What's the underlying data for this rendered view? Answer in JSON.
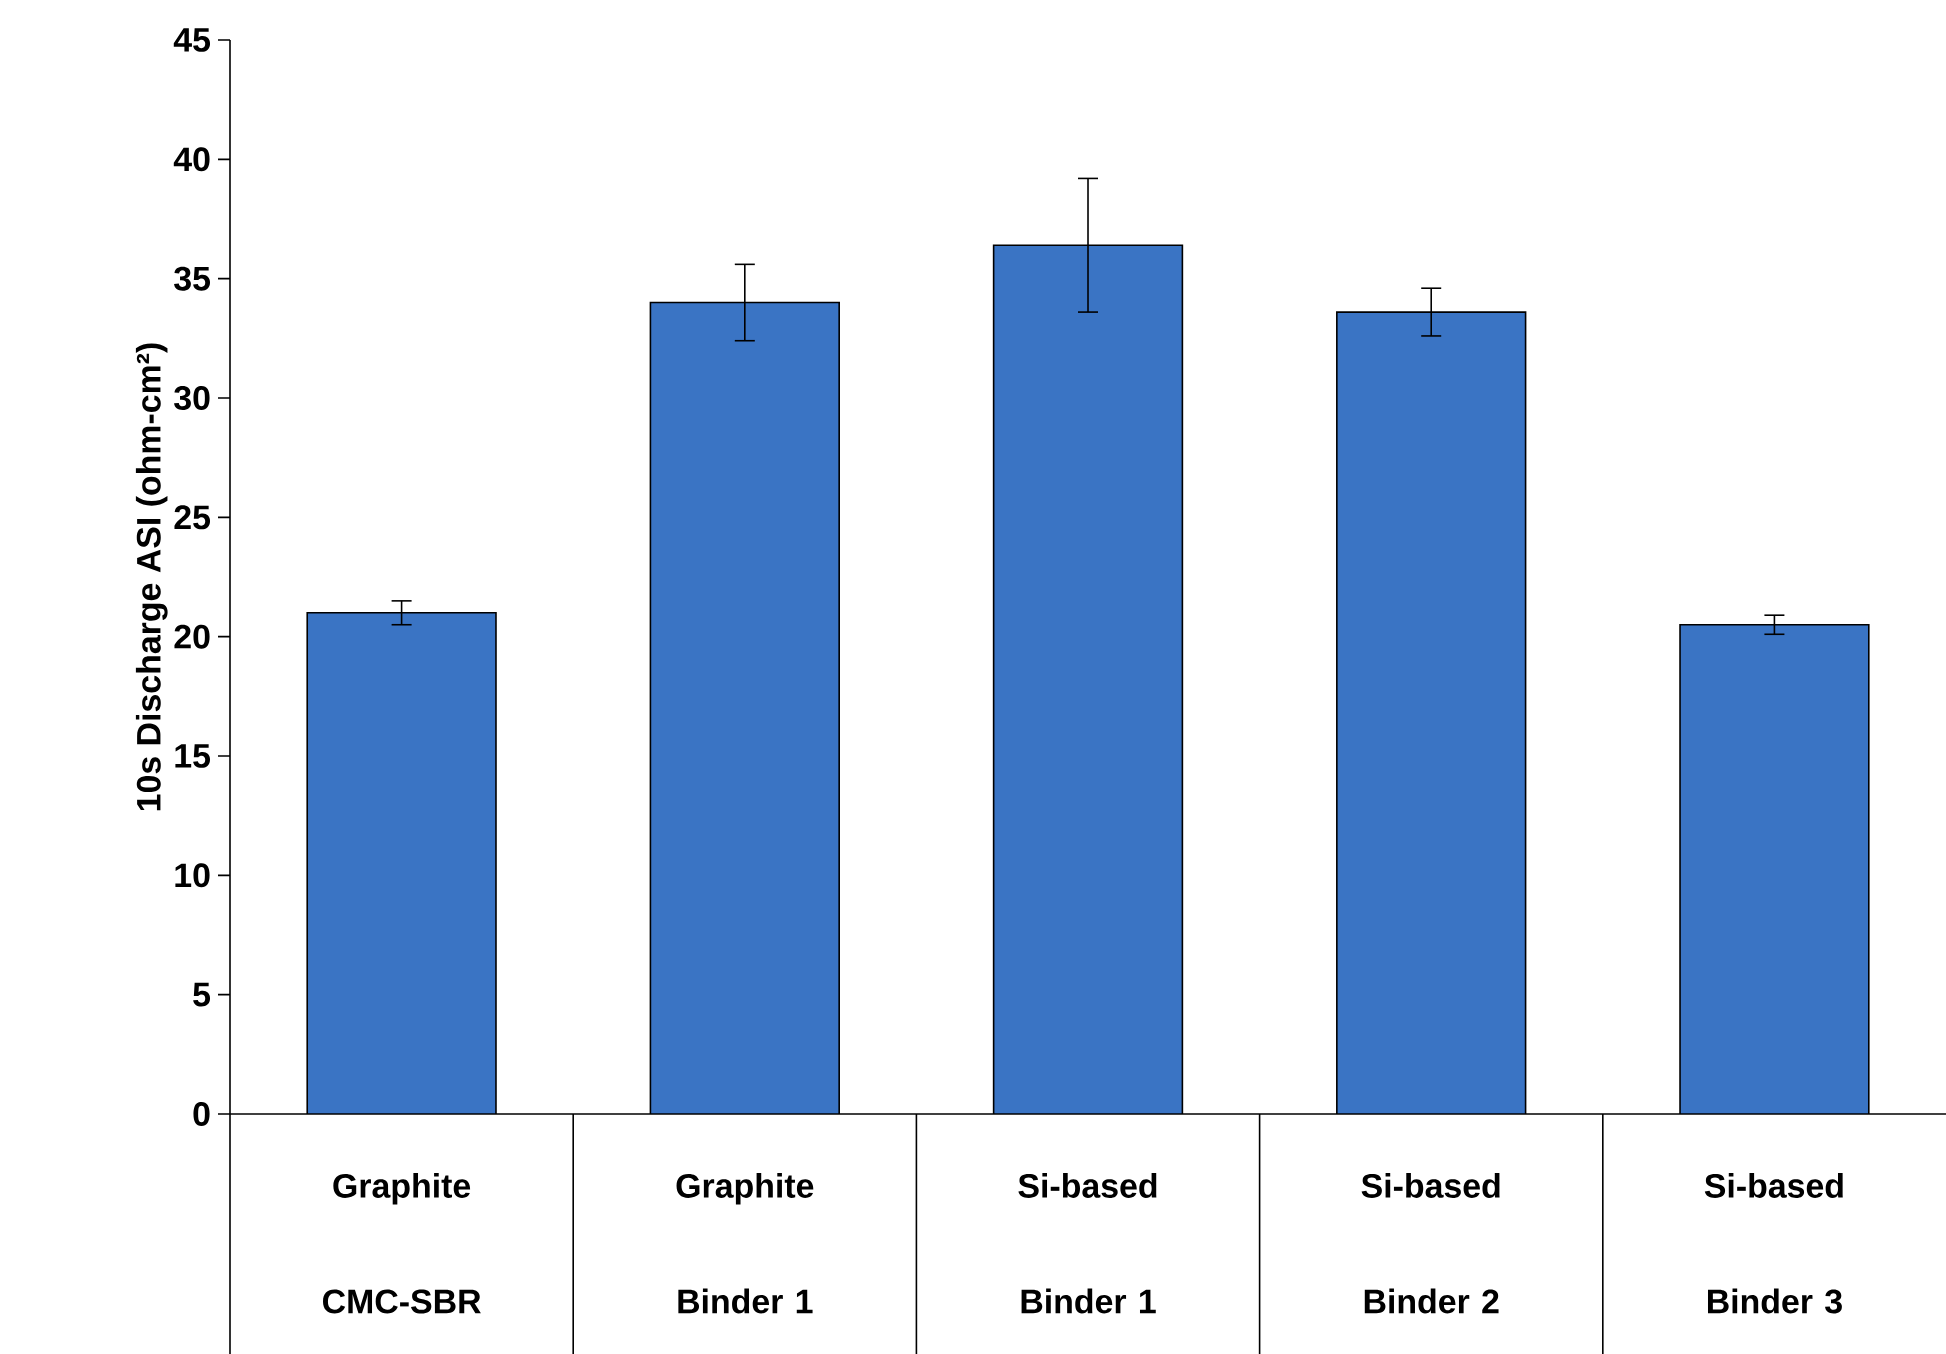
{
  "chart_data": {
    "type": "bar",
    "ylabel": "10s Discharge ASI (ohm-cm²)",
    "categories": [
      "Graphite CMC-SBR",
      "Graphite Binder 1",
      "Si-based Binder 1",
      "Si-based Binder 2",
      "Si-based Binder 3"
    ],
    "values": [
      21.0,
      34.0,
      36.4,
      33.6,
      20.5
    ],
    "errors": [
      0.5,
      1.6,
      2.8,
      1.0,
      0.4
    ],
    "color": "#3a74c4",
    "ylim": [
      0,
      45
    ],
    "yticks": [
      0,
      5,
      10,
      15,
      20,
      25,
      30,
      35,
      40,
      45
    ],
    "grid": false
  }
}
